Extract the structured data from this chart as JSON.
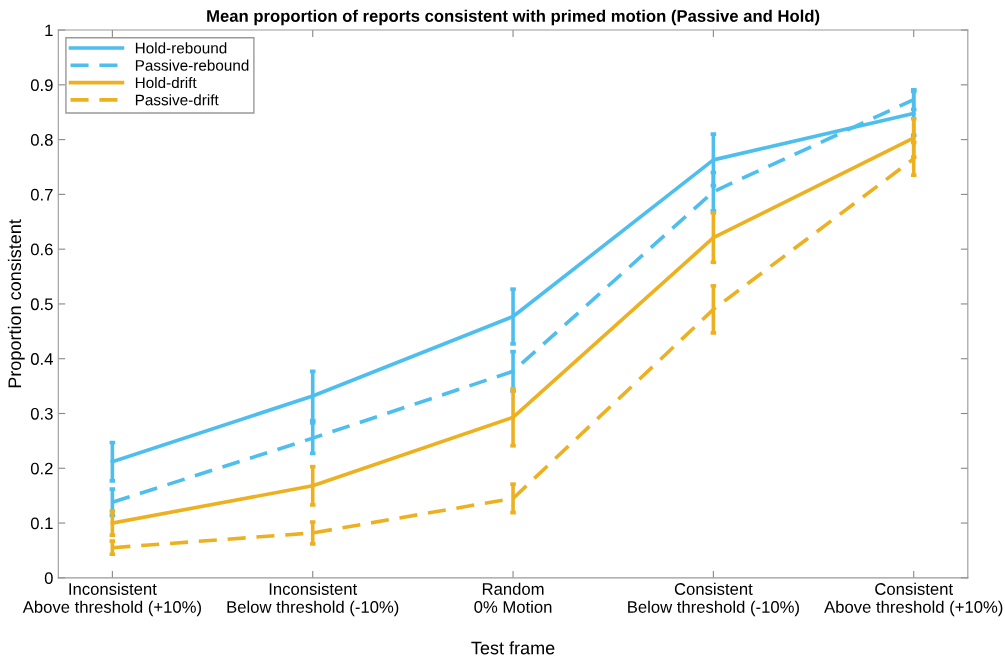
{
  "chart_data": {
    "type": "line",
    "title": "Mean proportion of reports consistent with primed motion (Passive and Hold)",
    "xlabel": "Test frame",
    "ylabel": "Proportion consistent",
    "categories": [
      "Inconsistent\nAbove threshold (+10%)",
      "Inconsistent\nBelow threshold (-10%)",
      "Random\n0% Motion",
      "Consistent\nBelow threshold (-10%)",
      "Consistent\nAbove threshold (+10%)"
    ],
    "series": [
      {
        "name": "Hold-rebound",
        "color": "#4dbeee",
        "line_style": "solid",
        "values": [
          0.212,
          0.332,
          0.477,
          0.763,
          0.848
        ],
        "errors": [
          0.035,
          0.045,
          0.05,
          0.047,
          0.04
        ]
      },
      {
        "name": "Passive-rebound",
        "color": "#4dbeee",
        "line_style": "dashed",
        "values": [
          0.138,
          0.255,
          0.377,
          0.705,
          0.873
        ],
        "errors": [
          0.024,
          0.028,
          0.036,
          0.035,
          0.018
        ]
      },
      {
        "name": "Hold-drift",
        "color": "#edb120",
        "line_style": "solid",
        "values": [
          0.1,
          0.168,
          0.293,
          0.621,
          0.803
        ],
        "errors": [
          0.022,
          0.035,
          0.052,
          0.045,
          0.035
        ]
      },
      {
        "name": "Passive-drift",
        "color": "#edb120",
        "line_style": "dashed",
        "values": [
          0.055,
          0.082,
          0.145,
          0.49,
          0.765
        ],
        "errors": [
          0.012,
          0.02,
          0.026,
          0.043,
          0.03
        ]
      }
    ],
    "ylim": [
      0,
      1
    ],
    "yticks": [
      0,
      0.1,
      0.2,
      0.3,
      0.4,
      0.5,
      0.6,
      0.7,
      0.8,
      0.9,
      1
    ],
    "grid": false,
    "legend": "top left",
    "marker": "none"
  }
}
